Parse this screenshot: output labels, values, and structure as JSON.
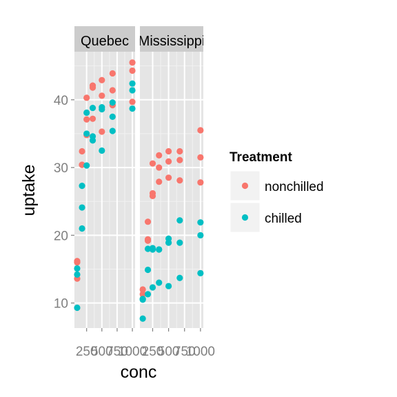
{
  "chart_data": {
    "type": "scatter",
    "xlabel": "conc",
    "ylabel": "uptake",
    "facets": [
      "Quebec",
      "Mississippi"
    ],
    "x_tick_labels": [
      "250",
      "500",
      "750",
      "1000"
    ],
    "y_tick_labels": [
      "10",
      "20",
      "30",
      "40"
    ],
    "xlim": [
      95,
      1000
    ],
    "ylim": [
      6.3,
      47.1
    ],
    "grid": true,
    "legend": {
      "title": "Treatment",
      "position": "right",
      "items": [
        {
          "label": "nonchilled",
          "color": "#F8766D"
        },
        {
          "label": "chilled",
          "color": "#00BFC4"
        }
      ]
    },
    "series": [
      {
        "name": "nonchilled",
        "color": "#F8766D",
        "panels": [
          {
            "facet": "Quebec",
            "points": [
              [
                95,
                16.0
              ],
              [
                95,
                13.6
              ],
              [
                95,
                16.2
              ],
              [
                175,
                30.4
              ],
              [
                175,
                32.4
              ],
              [
                175,
                30.4
              ],
              [
                250,
                34.8
              ],
              [
                250,
                37.1
              ],
              [
                250,
                40.3
              ],
              [
                350,
                37.2
              ],
              [
                350,
                41.8
              ],
              [
                350,
                42.1
              ],
              [
                500,
                35.3
              ],
              [
                500,
                40.6
              ],
              [
                500,
                42.9
              ],
              [
                675,
                39.2
              ],
              [
                675,
                41.4
              ],
              [
                675,
                43.9
              ],
              [
                1000,
                39.7
              ],
              [
                1000,
                44.3
              ],
              [
                1000,
                45.5
              ]
            ]
          },
          {
            "facet": "Mississippi",
            "points": [
              [
                95,
                10.6
              ],
              [
                95,
                12.0
              ],
              [
                95,
                11.3
              ],
              [
                175,
                19.2
              ],
              [
                175,
                22.0
              ],
              [
                175,
                19.4
              ],
              [
                250,
                26.2
              ],
              [
                250,
                30.6
              ],
              [
                250,
                25.8
              ],
              [
                350,
                30.0
              ],
              [
                350,
                31.8
              ],
              [
                350,
                27.9
              ],
              [
                500,
                30.9
              ],
              [
                500,
                32.4
              ],
              [
                500,
                28.5
              ],
              [
                675,
                32.4
              ],
              [
                675,
                31.1
              ],
              [
                675,
                28.1
              ],
              [
                1000,
                35.5
              ],
              [
                1000,
                31.5
              ],
              [
                1000,
                27.8
              ]
            ]
          }
        ]
      },
      {
        "name": "chilled",
        "color": "#00BFC4",
        "panels": [
          {
            "facet": "Quebec",
            "points": [
              [
                95,
                14.2
              ],
              [
                95,
                9.3
              ],
              [
                95,
                15.1
              ],
              [
                175,
                24.1
              ],
              [
                175,
                27.3
              ],
              [
                175,
                21.0
              ],
              [
                250,
                30.3
              ],
              [
                250,
                35.0
              ],
              [
                250,
                38.1
              ],
              [
                350,
                34.6
              ],
              [
                350,
                38.8
              ],
              [
                350,
                34.0
              ],
              [
                500,
                32.5
              ],
              [
                500,
                38.6
              ],
              [
                500,
                38.9
              ],
              [
                675,
                35.4
              ],
              [
                675,
                37.5
              ],
              [
                675,
                39.6
              ],
              [
                1000,
                38.7
              ],
              [
                1000,
                42.4
              ],
              [
                1000,
                41.4
              ]
            ]
          },
          {
            "facet": "Mississippi",
            "points": [
              [
                95,
                10.5
              ],
              [
                95,
                7.7
              ],
              [
                95,
                10.6
              ],
              [
                175,
                14.9
              ],
              [
                175,
                11.3
              ],
              [
                175,
                18.0
              ],
              [
                250,
                18.1
              ],
              [
                250,
                12.3
              ],
              [
                250,
                17.9
              ],
              [
                350,
                17.9
              ],
              [
                350,
                13.0
              ],
              [
                350,
                17.9
              ],
              [
                500,
                18.9
              ],
              [
                500,
                19.5
              ],
              [
                500,
                12.5
              ],
              [
                675,
                22.2
              ],
              [
                675,
                18.9
              ],
              [
                675,
                13.7
              ],
              [
                1000,
                21.9
              ],
              [
                1000,
                20.0
              ],
              [
                1000,
                14.4
              ]
            ]
          }
        ]
      }
    ]
  }
}
